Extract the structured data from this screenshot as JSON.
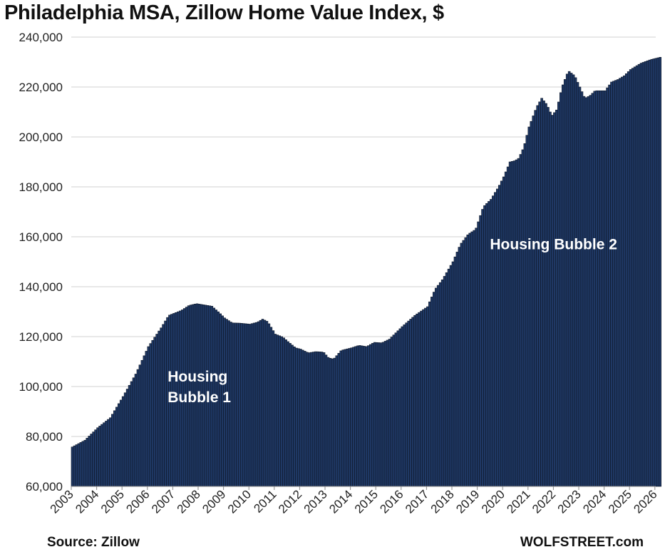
{
  "chart_data": {
    "type": "bar",
    "title": "Philadelphia MSA, Zillow Home Value Index, $",
    "source": "Source: Zillow",
    "brand": "WOLFSTREET.com",
    "bar_color": "#1f3864",
    "bar_edge_color": "#0d1626",
    "grid": true,
    "ylim": [
      60000,
      240000
    ],
    "y_ticks": [
      60000,
      80000,
      100000,
      120000,
      140000,
      160000,
      180000,
      200000,
      220000,
      240000
    ],
    "y_tick_labels": [
      "60,000",
      "80,000",
      "100,000",
      "120,000",
      "140,000",
      "160,000",
      "180,000",
      "200,000",
      "220,000",
      "240,000"
    ],
    "x_tick_labels": [
      "2003",
      "2004",
      "2005",
      "2006",
      "2007",
      "2008",
      "2009",
      "2010",
      "2011",
      "2012",
      "2013",
      "2014",
      "2015",
      "2016",
      "2017",
      "2018",
      "2019",
      "2020",
      "2021",
      "2022",
      "2023",
      "2024",
      "2025",
      "2026"
    ],
    "x_start_year": 2003,
    "annotations": [
      {
        "lines": [
          "Housing",
          "Bubble 1"
        ],
        "year": 2006.8,
        "value": 102000
      },
      {
        "lines": [
          "Housing Bubble 2"
        ],
        "year": 2019.5,
        "value": 155000
      }
    ],
    "series_anchors": [
      [
        2003.0,
        75800
      ],
      [
        2003.5,
        78500
      ],
      [
        2004.0,
        83500
      ],
      [
        2004.5,
        87500
      ],
      [
        2005.0,
        96000
      ],
      [
        2005.5,
        105000
      ],
      [
        2006.0,
        116000
      ],
      [
        2006.5,
        123500
      ],
      [
        2006.8,
        128500
      ],
      [
        2007.0,
        129300
      ],
      [
        2007.3,
        130500
      ],
      [
        2007.6,
        132500
      ],
      [
        2007.9,
        133200
      ],
      [
        2008.2,
        132700
      ],
      [
        2008.5,
        132200
      ],
      [
        2008.8,
        129500
      ],
      [
        2009.0,
        127500
      ],
      [
        2009.3,
        125500
      ],
      [
        2009.6,
        125400
      ],
      [
        2010.0,
        125000
      ],
      [
        2010.3,
        125800
      ],
      [
        2010.5,
        127000
      ],
      [
        2010.7,
        126000
      ],
      [
        2011.0,
        121000
      ],
      [
        2011.3,
        119800
      ],
      [
        2011.5,
        118000
      ],
      [
        2011.8,
        115500
      ],
      [
        2012.0,
        115000
      ],
      [
        2012.3,
        113500
      ],
      [
        2012.6,
        114000
      ],
      [
        2012.9,
        113800
      ],
      [
        2013.1,
        111500
      ],
      [
        2013.3,
        111000
      ],
      [
        2013.6,
        114500
      ],
      [
        2014.0,
        115500
      ],
      [
        2014.3,
        116500
      ],
      [
        2014.6,
        116000
      ],
      [
        2014.9,
        117700
      ],
      [
        2015.2,
        117500
      ],
      [
        2015.5,
        119000
      ],
      [
        2016.0,
        124000
      ],
      [
        2016.5,
        128500
      ],
      [
        2017.0,
        132000
      ],
      [
        2017.3,
        139000
      ],
      [
        2017.6,
        143000
      ],
      [
        2018.0,
        150000
      ],
      [
        2018.3,
        157000
      ],
      [
        2018.6,
        161000
      ],
      [
        2018.9,
        163000
      ],
      [
        2019.2,
        172000
      ],
      [
        2019.5,
        175000
      ],
      [
        2019.8,
        180000
      ],
      [
        2020.0,
        184000
      ],
      [
        2020.25,
        190000
      ],
      [
        2020.45,
        190500
      ],
      [
        2020.6,
        191500
      ],
      [
        2020.8,
        196000
      ],
      [
        2021.0,
        204000
      ],
      [
        2021.3,
        212000
      ],
      [
        2021.5,
        215500
      ],
      [
        2021.7,
        213000
      ],
      [
        2021.9,
        208500
      ],
      [
        2022.1,
        211000
      ],
      [
        2022.3,
        220000
      ],
      [
        2022.55,
        226500
      ],
      [
        2022.8,
        224500
      ],
      [
        2023.0,
        220000
      ],
      [
        2023.2,
        215500
      ],
      [
        2023.4,
        216500
      ],
      [
        2023.6,
        218500
      ],
      [
        2023.8,
        218500
      ],
      [
        2024.0,
        218500
      ],
      [
        2024.25,
        222000
      ],
      [
        2024.5,
        223000
      ],
      [
        2024.75,
        224500
      ],
      [
        2025.0,
        227000
      ],
      [
        2025.4,
        229500
      ],
      [
        2025.8,
        231000
      ],
      [
        2026.2,
        232000
      ]
    ]
  }
}
